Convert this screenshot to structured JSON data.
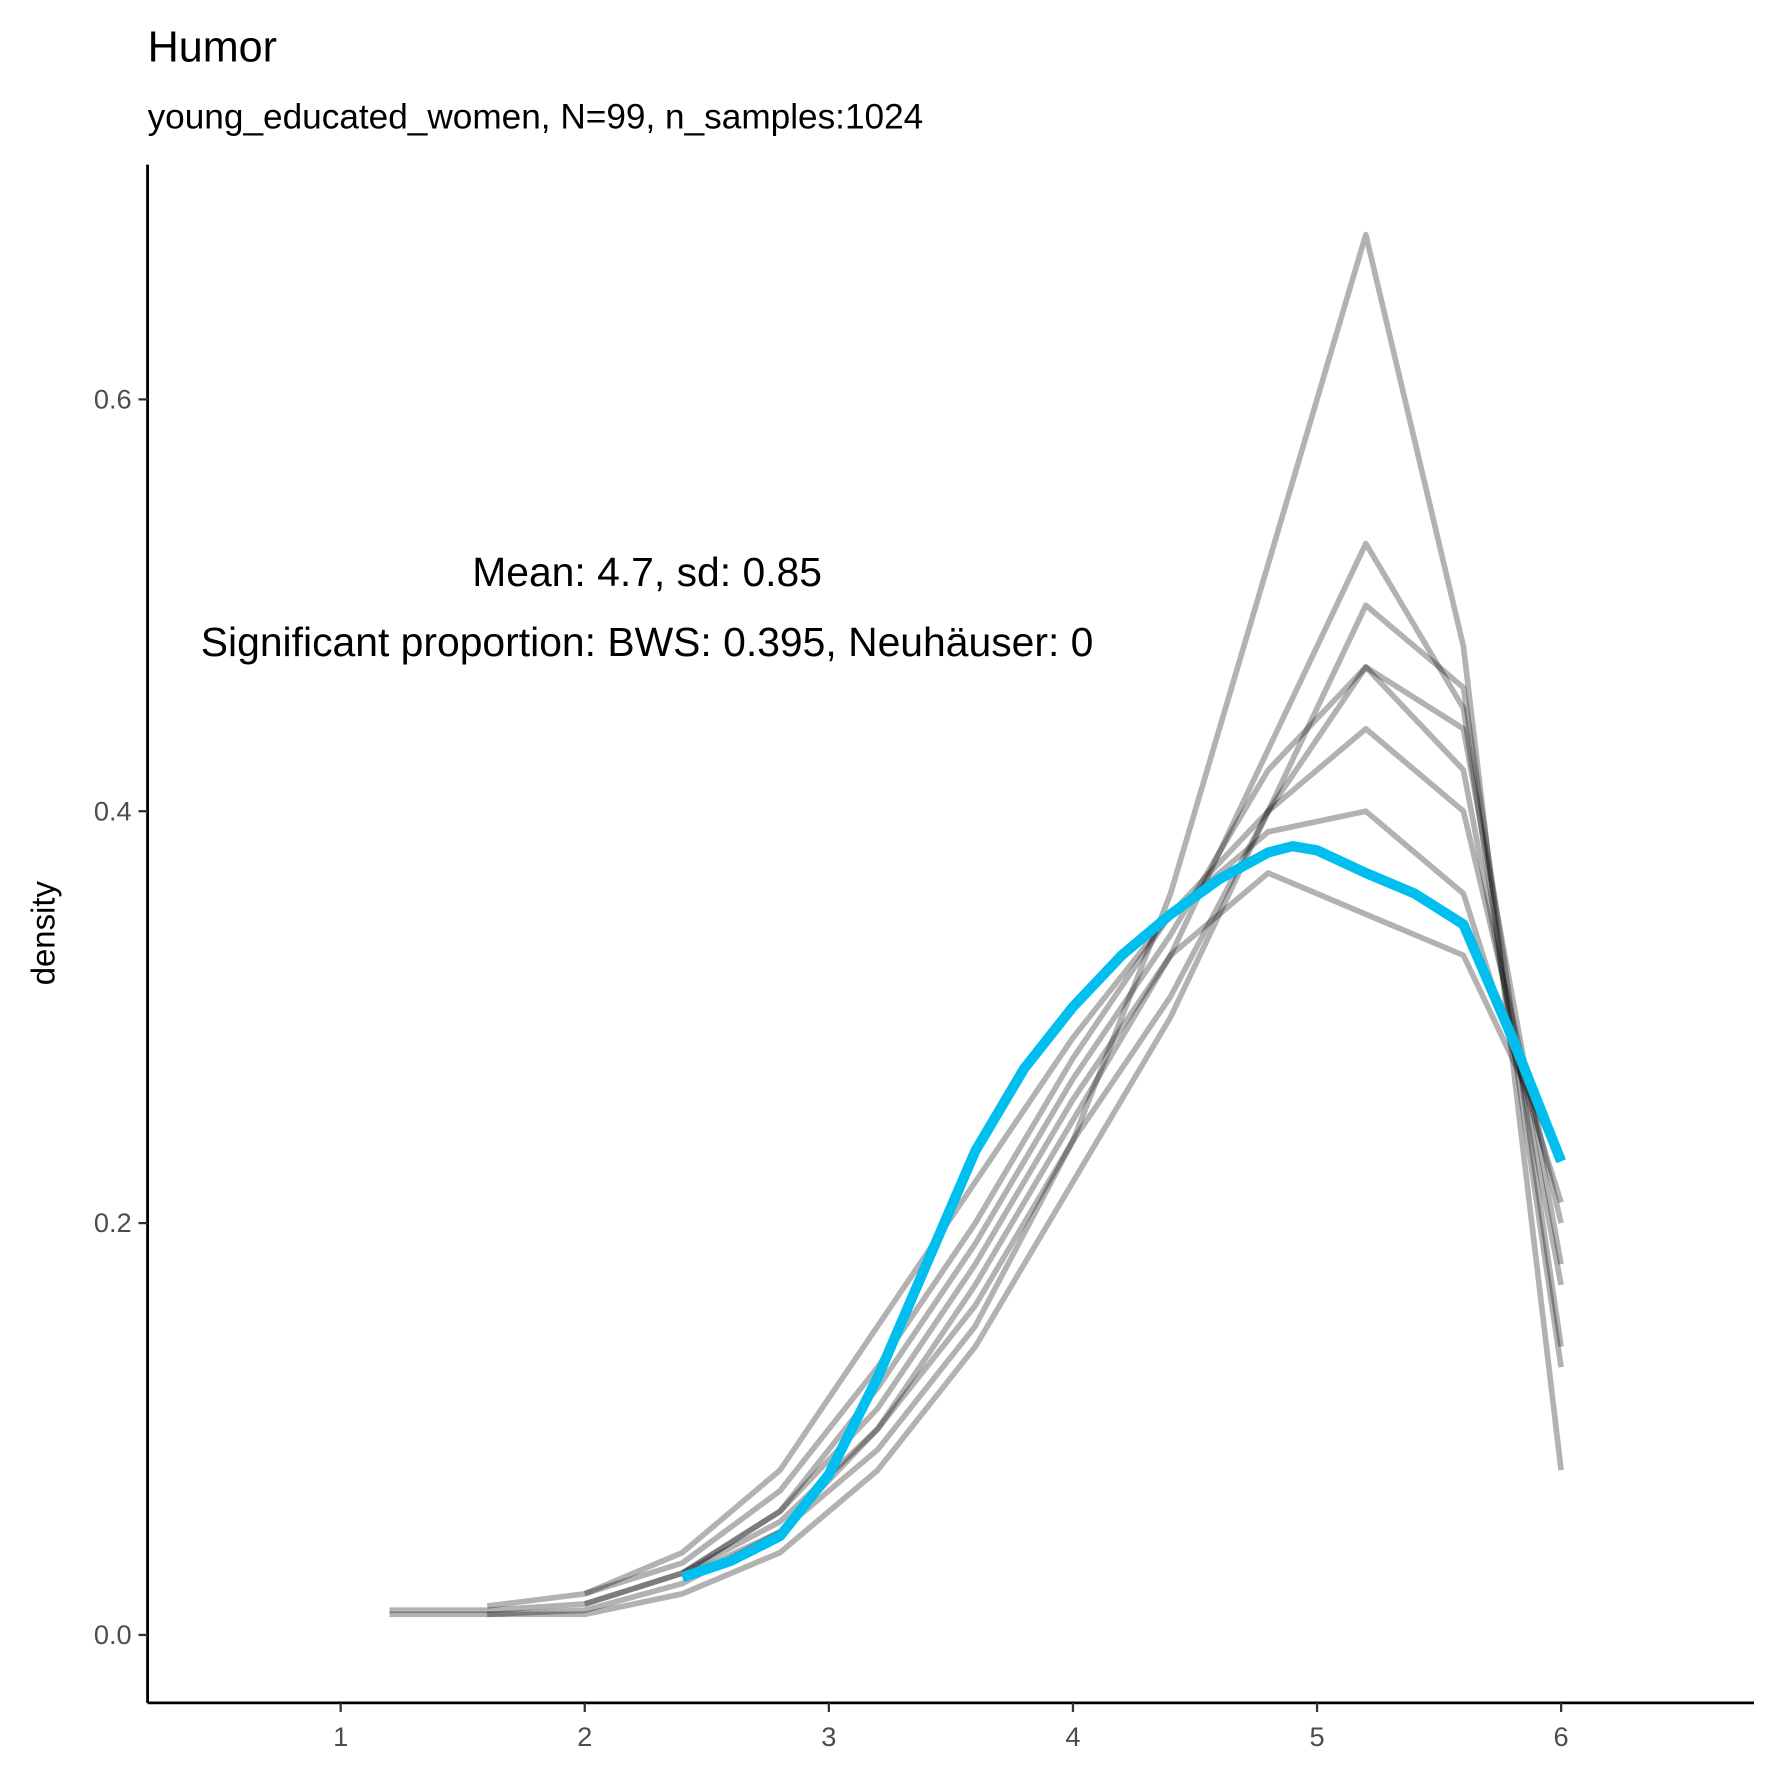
{
  "chart_data": {
    "type": "line",
    "title": "Humor",
    "subtitle": "young_educated_women, N=99, n_samples:1024",
    "y_label": "density",
    "annotations": [
      "Mean: 4.7, sd: 0.85",
      "Significant proportion: BWS: 0.395, Neuhäuser: 0"
    ],
    "xlim": [
      0.209,
      6.79
    ],
    "xticks": [
      1,
      2,
      3,
      4,
      5,
      6
    ],
    "ylim": [
      -0.033,
      0.714
    ],
    "yticks": [
      {
        "value": 0,
        "label": "0.0"
      },
      0.2,
      0.4,
      0.6
    ],
    "grid": false,
    "series": [
      {
        "color": "#000000",
        "x": [
          1.2,
          1.6,
          2.0,
          2.4,
          2.8,
          3.2,
          3.6,
          4.0,
          4.4,
          4.8,
          5.2,
          5.6,
          6.0
        ],
        "values": [
          0.012,
          0.012,
          0.015,
          0.03,
          0.06,
          0.12,
          0.19,
          0.27,
          0.34,
          0.42,
          0.47,
          0.42,
          0.17
        ]
      },
      {
        "color": "#000000",
        "x": [
          1.2,
          1.6,
          2.0,
          2.4,
          2.8,
          3.2,
          3.6,
          4.0,
          4.4,
          4.8,
          5.2,
          5.6,
          6.0
        ],
        "values": [
          0.01,
          0.01,
          0.012,
          0.025,
          0.05,
          0.09,
          0.15,
          0.24,
          0.36,
          0.52,
          0.68,
          0.48,
          0.08
        ]
      },
      {
        "color": "#000000",
        "x": [
          1.6,
          2.0,
          2.4,
          2.8,
          3.2,
          3.6,
          4.0,
          4.4,
          4.8,
          5.2,
          5.6,
          6.0
        ],
        "values": [
          0.014,
          0.02,
          0.04,
          0.08,
          0.15,
          0.22,
          0.29,
          0.35,
          0.4,
          0.44,
          0.4,
          0.2
        ]
      },
      {
        "color": "#000000",
        "x": [
          1.6,
          2.0,
          2.4,
          2.8,
          3.2,
          3.6,
          4.0,
          4.4,
          4.8,
          5.2,
          5.6,
          6.0
        ],
        "values": [
          0.01,
          0.01,
          0.02,
          0.04,
          0.08,
          0.14,
          0.22,
          0.3,
          0.4,
          0.5,
          0.46,
          0.14
        ]
      },
      {
        "color": "#000000",
        "x": [
          2.0,
          2.4,
          2.8,
          3.2,
          3.6,
          4.0,
          4.4,
          4.8,
          5.2,
          5.6,
          6.0
        ],
        "values": [
          0.02,
          0.035,
          0.07,
          0.13,
          0.2,
          0.28,
          0.35,
          0.39,
          0.4,
          0.36,
          0.21
        ]
      },
      {
        "color": "#000000",
        "x": [
          2.0,
          2.4,
          2.8,
          3.2,
          3.6,
          4.0,
          4.4,
          4.8,
          5.2,
          5.6,
          6.0
        ],
        "values": [
          0.015,
          0.03,
          0.055,
          0.1,
          0.17,
          0.25,
          0.33,
          0.43,
          0.53,
          0.45,
          0.13
        ]
      },
      {
        "color": "#000000",
        "x": [
          2.4,
          2.8,
          3.2,
          3.6,
          4.0,
          4.4,
          4.8,
          5.2,
          5.6,
          6.0
        ],
        "values": [
          0.03,
          0.06,
          0.11,
          0.18,
          0.26,
          0.33,
          0.37,
          0.35,
          0.33,
          0.23
        ]
      },
      {
        "color": "#000000",
        "x": [
          2.4,
          2.8,
          3.2,
          3.6,
          4.0,
          4.4,
          4.8,
          5.2,
          5.6,
          6.0
        ],
        "values": [
          0.028,
          0.05,
          0.1,
          0.16,
          0.24,
          0.31,
          0.4,
          0.47,
          0.44,
          0.18
        ]
      },
      {
        "color": "#00bfef",
        "x": [
          2.4,
          2.6,
          2.8,
          3.0,
          3.2,
          3.4,
          3.6,
          3.8,
          4.0,
          4.2,
          4.4,
          4.6,
          4.8,
          4.9,
          5.0,
          5.2,
          5.4,
          5.6,
          5.8,
          6.0
        ],
        "values": [
          0.028,
          0.036,
          0.048,
          0.078,
          0.125,
          0.18,
          0.235,
          0.275,
          0.305,
          0.33,
          0.35,
          0.367,
          0.38,
          0.383,
          0.381,
          0.37,
          0.36,
          0.345,
          0.29,
          0.23
        ]
      }
    ]
  }
}
